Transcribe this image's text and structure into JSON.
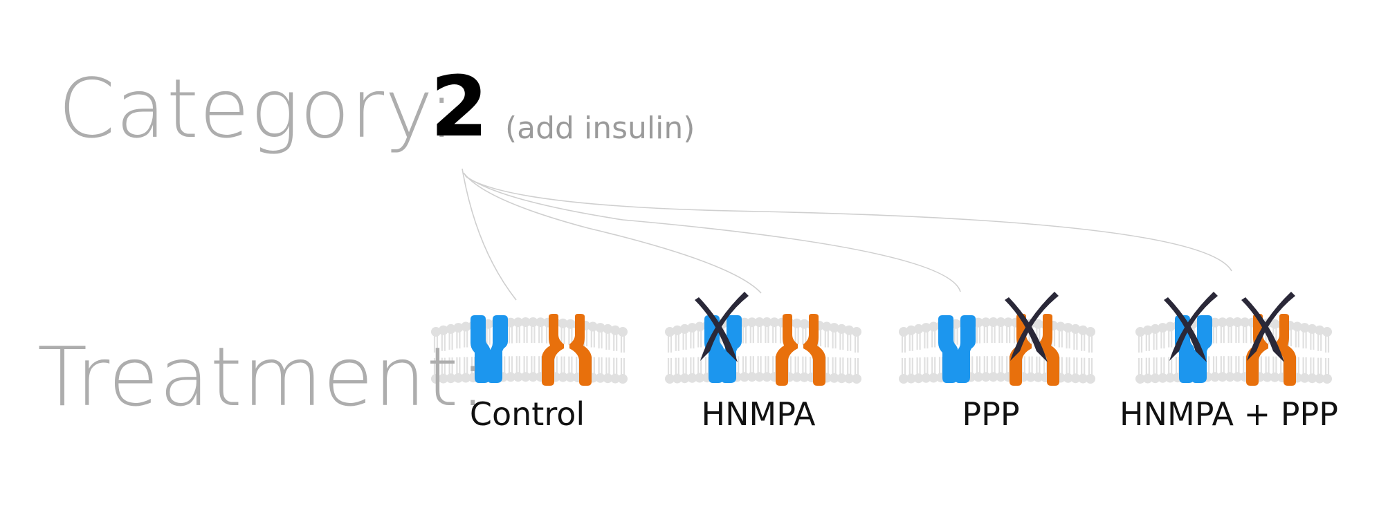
{
  "header": {
    "category_label": "Category:",
    "category_value": "2",
    "category_note": "(add insulin)"
  },
  "treatment": {
    "label": "Treatment:",
    "groups": [
      {
        "name": "Control",
        "blocked": []
      },
      {
        "name": "HNMPA",
        "blocked": [
          "blue-receptor"
        ]
      },
      {
        "name": "PPP",
        "blocked": [
          "orange-receptor"
        ]
      },
      {
        "name": "HNMPA + PPP",
        "blocked": [
          "blue-receptor",
          "orange-receptor"
        ]
      }
    ]
  },
  "colors": {
    "label_gray": "#adadad",
    "membrane": "#e0e0e0",
    "blue_receptor": "#1c96ee",
    "orange_receptor": "#e8700c",
    "cross": "#2a2838",
    "connector": "#cfcfcf"
  }
}
